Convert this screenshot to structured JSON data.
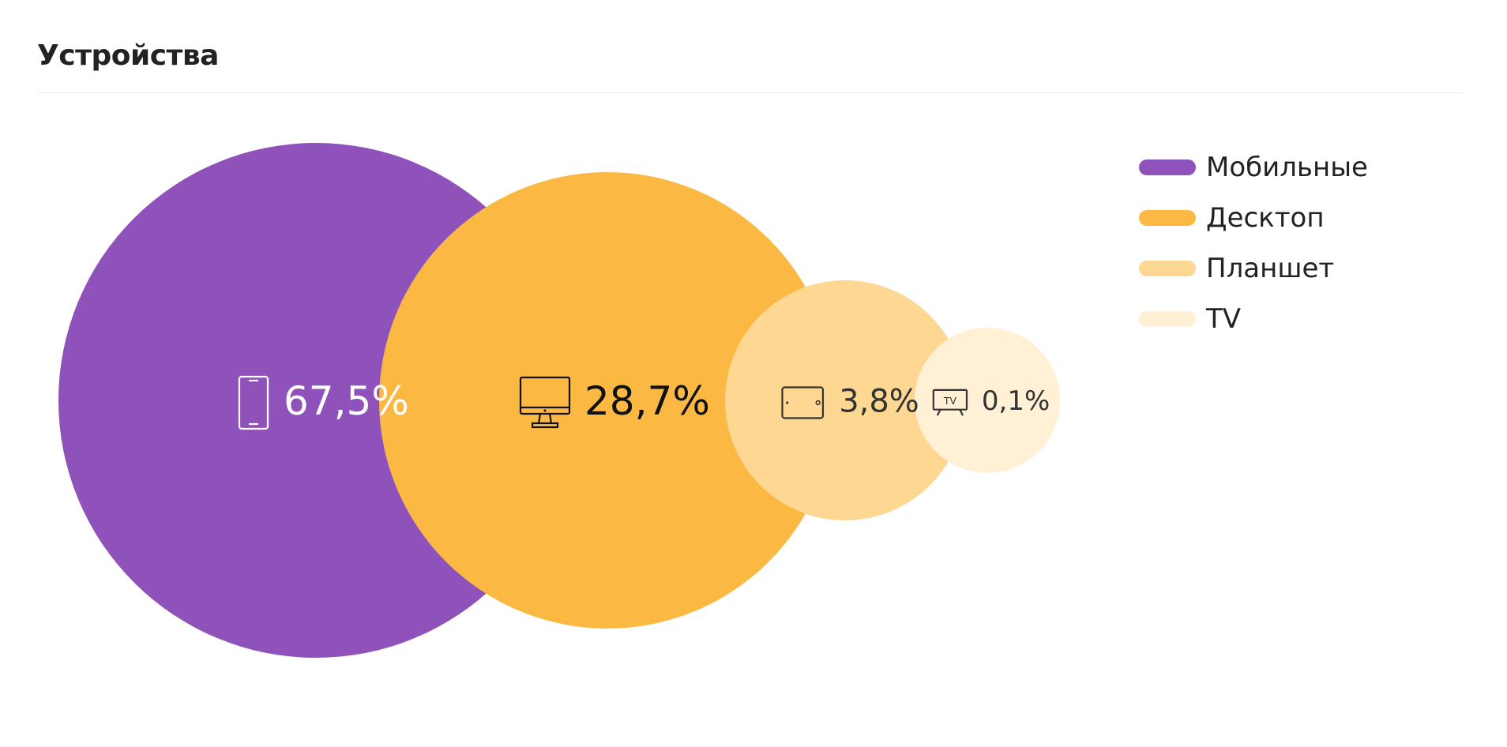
{
  "header": {
    "title": "Устройства"
  },
  "chart_data": {
    "type": "bubble",
    "unit": "%",
    "series": [
      {
        "name": "Мобильные",
        "value": 67.5,
        "label": "67,5%",
        "icon": "smartphone-icon",
        "color": "#8f52bb",
        "label_color": "#ffffff"
      },
      {
        "name": "Десктоп",
        "value": 28.7,
        "label": "28,7%",
        "icon": "desktop-monitor-icon",
        "color": "#fbb944",
        "label_color": "#111111"
      },
      {
        "name": "Планшет",
        "value": 3.8,
        "label": "3,8%",
        "icon": "tablet-icon",
        "color": "#fed892",
        "label_color": "#333333"
      },
      {
        "name": "TV",
        "value": 0.1,
        "label": "0,1%",
        "icon": "tv-icon",
        "color": "#fff0d6",
        "label_color": "#333333",
        "icon_text": "TV"
      }
    ],
    "legend": {
      "position": "top-right"
    }
  }
}
